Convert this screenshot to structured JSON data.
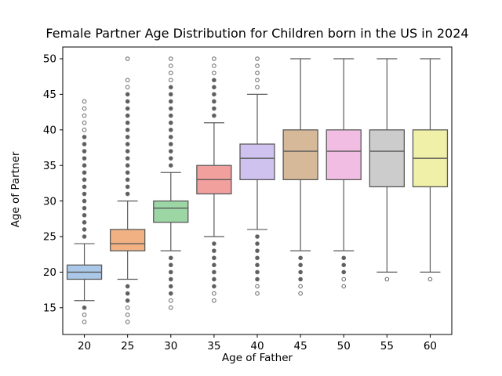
{
  "chart_data": {
    "type": "boxplot",
    "title": "Female Partner Age Distribution for Children born in the US in 2024",
    "xlabel": "Age of Father",
    "ylabel": "Age of Partner",
    "categories": [
      20,
      25,
      30,
      35,
      40,
      45,
      50,
      55,
      60
    ],
    "yticks": [
      15,
      20,
      25,
      30,
      35,
      40,
      45,
      50
    ],
    "ylim": [
      11.3,
      51.6
    ],
    "grid": false,
    "legend": "none",
    "edge_color": "#5a5a5a",
    "flier_edge_color": "#666666",
    "boxes": [
      {
        "category": 20,
        "color": "#abc8e8",
        "whislo": 16,
        "q1": 19,
        "med": 20,
        "q3": 21,
        "whishi": 24,
        "fliers_above": [
          25,
          26,
          27,
          28,
          29,
          30,
          31,
          32,
          33,
          34,
          35,
          36,
          37,
          38,
          39,
          40,
          41,
          42,
          43,
          44
        ],
        "fliers_below": [
          15,
          14,
          13
        ],
        "open_fliers": [
          44,
          43,
          42,
          41,
          40,
          14,
          13
        ]
      },
      {
        "category": 25,
        "color": "#f2b183",
        "whislo": 19,
        "q1": 23,
        "med": 24,
        "q3": 26,
        "whishi": 30,
        "fliers_above": [
          31,
          32,
          33,
          34,
          35,
          36,
          37,
          38,
          39,
          40,
          41,
          42,
          43,
          44,
          45,
          46,
          47,
          50
        ],
        "fliers_below": [
          18,
          17,
          16,
          15,
          14,
          13
        ],
        "open_fliers": [
          50,
          47,
          46,
          15,
          14,
          13
        ]
      },
      {
        "category": 30,
        "color": "#9cd6a4",
        "whislo": 23,
        "q1": 27,
        "med": 29,
        "q3": 30,
        "whishi": 34,
        "fliers_above": [
          35,
          36,
          37,
          38,
          39,
          40,
          41,
          42,
          43,
          44,
          45,
          46,
          47,
          48,
          49,
          50
        ],
        "fliers_below": [
          22,
          21,
          20,
          19,
          18,
          17,
          16,
          15
        ],
        "open_fliers": [
          50,
          49,
          48,
          47,
          16,
          15
        ]
      },
      {
        "category": 35,
        "color": "#f1a09e",
        "whislo": 25,
        "q1": 31,
        "med": 33,
        "q3": 35,
        "whishi": 41,
        "fliers_above": [
          42,
          43,
          44,
          45,
          46,
          47,
          48,
          49,
          50
        ],
        "fliers_below": [
          24,
          23,
          22,
          21,
          20,
          19,
          18,
          17,
          16
        ],
        "open_fliers": [
          50,
          49,
          48,
          17,
          16
        ]
      },
      {
        "category": 40,
        "color": "#cfc2ef",
        "whislo": 26,
        "q1": 33,
        "med": 36,
        "q3": 38,
        "whishi": 45,
        "fliers_above": [
          46,
          47,
          48,
          49,
          50
        ],
        "fliers_below": [
          25,
          24,
          23,
          22,
          21,
          20,
          19,
          18,
          17
        ],
        "open_fliers": [
          50,
          49,
          48,
          47,
          46,
          18,
          17
        ]
      },
      {
        "category": 45,
        "color": "#d5b999",
        "whislo": 23,
        "q1": 33,
        "med": 37,
        "q3": 40,
        "whishi": 50,
        "fliers_above": [],
        "fliers_below": [
          22,
          21,
          20,
          19,
          18,
          17
        ],
        "open_fliers": [
          18,
          17
        ]
      },
      {
        "category": 50,
        "color": "#f1bde2",
        "whislo": 23,
        "q1": 33,
        "med": 37,
        "q3": 40,
        "whishi": 50,
        "fliers_above": [],
        "fliers_below": [
          22,
          21,
          20,
          19,
          18
        ],
        "open_fliers": [
          19,
          18
        ]
      },
      {
        "category": 55,
        "color": "#cccccc",
        "whislo": 20,
        "q1": 32,
        "med": 37,
        "q3": 40,
        "whishi": 50,
        "fliers_above": [],
        "fliers_below": [
          19
        ],
        "open_fliers": [
          19
        ]
      },
      {
        "category": 60,
        "color": "#f0f0a8",
        "whislo": 20,
        "q1": 32,
        "med": 36,
        "q3": 40,
        "whishi": 50,
        "fliers_above": [],
        "fliers_below": [
          19
        ],
        "open_fliers": [
          19
        ]
      }
    ]
  }
}
